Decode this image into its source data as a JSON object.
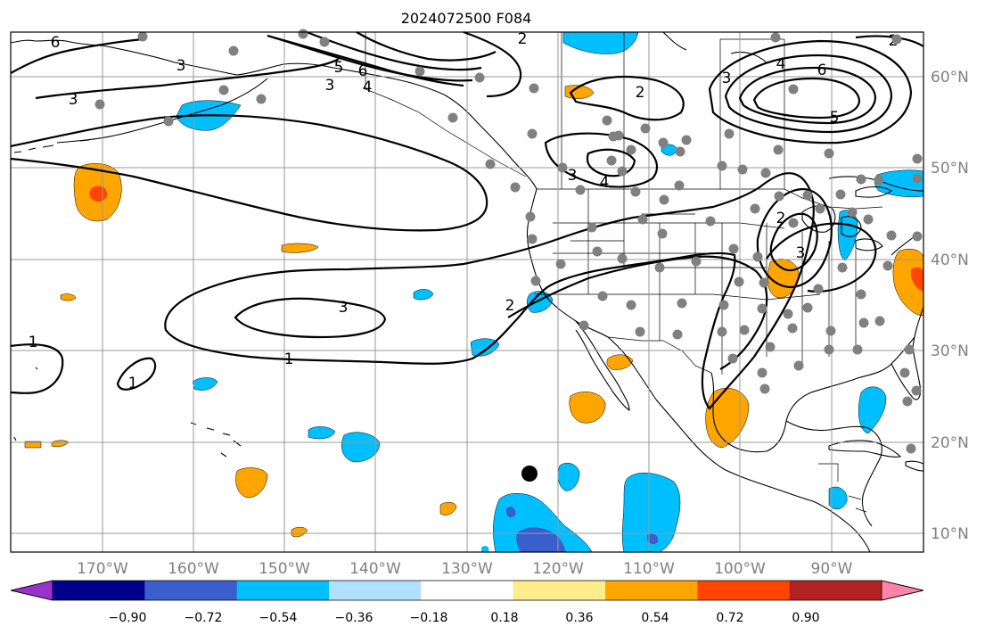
{
  "title": "2024072500 F084",
  "lon_labels": [
    "170°W",
    "160°W",
    "150°W",
    "140°W",
    "130°W",
    "120°W",
    "110°W",
    "100°W",
    "90°W"
  ],
  "lat_labels": [
    "60°N",
    "50°N",
    "40°N",
    "30°N",
    "20°N",
    "10°N"
  ],
  "colorbar": {
    "ticks": [
      "−0.90",
      "−0.72",
      "−0.54",
      "−0.36",
      "−0.18",
      "0.18",
      "0.36",
      "0.54",
      "0.72",
      "0.90"
    ],
    "colors": [
      "#9932cc",
      "#00008b",
      "#3a5fcd",
      "#00bfff",
      "#b0e2ff",
      "#ffffff",
      "#ffec8b",
      "#ffa500",
      "#ff4500",
      "#b22222",
      "#ff82ab"
    ]
  },
  "contour_labels": [
    "1",
    "1",
    "1",
    "2",
    "2",
    "2",
    "2",
    "2",
    "3",
    "3",
    "3",
    "3",
    "3",
    "3",
    "3",
    "4",
    "4",
    "4",
    "5",
    "5",
    "6",
    "6",
    "6"
  ],
  "point_color": "#808080",
  "marker_color": "#000000"
}
